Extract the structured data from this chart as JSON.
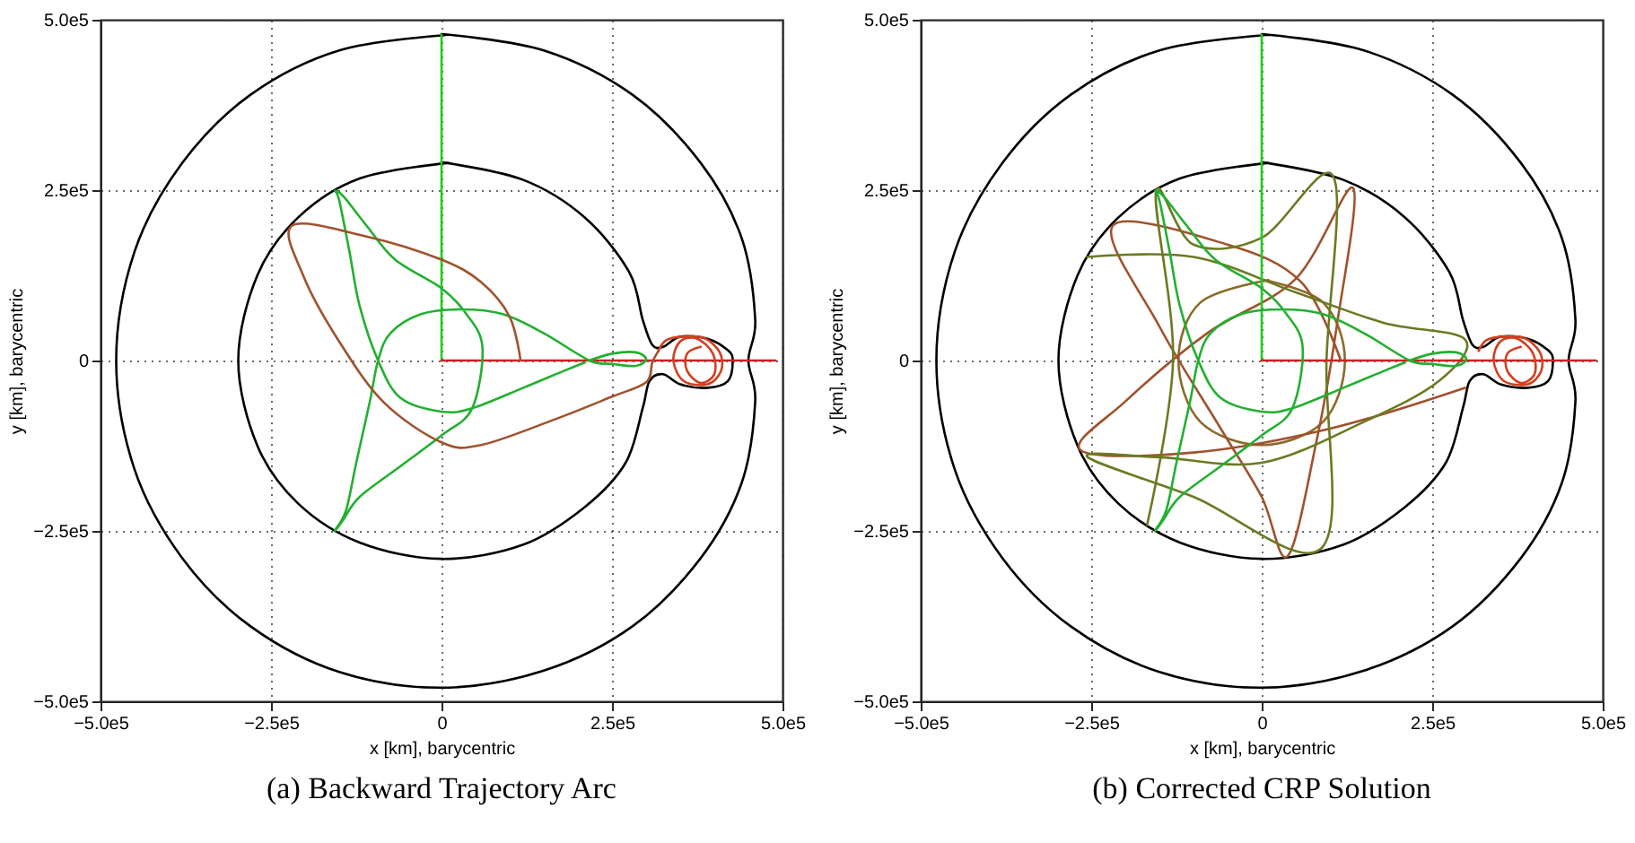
{
  "chart_data": [
    {
      "type": "line",
      "title": "(a) Backward Trajectory Arc",
      "xlabel": "x [km], barycentric",
      "ylabel": "y [km], barycentric",
      "xlim": [
        -500000.0,
        500000.0
      ],
      "ylim": [
        -500000.0,
        500000.0
      ],
      "xticks": [
        {
          "value": -500000.0,
          "label": "−5.0e5"
        },
        {
          "value": -250000.0,
          "label": "−2.5e5"
        },
        0,
        {
          "value": 250000.0,
          "label": "2.5e5"
        },
        {
          "value": 500000.0,
          "label": "5.0e5"
        }
      ],
      "yticks": [
        {
          "value": -500000.0,
          "label": "−5.0e5"
        },
        {
          "value": -250000.0,
          "label": "−2.5e5"
        },
        0,
        {
          "value": 250000.0,
          "label": "2.5e5"
        },
        {
          "value": 500000.0,
          "label": "5.0e5"
        }
      ],
      "grid": true,
      "series": [
        {
          "color": "#000000",
          "x": [
            0,
            150000.0,
            280000.0,
            380000.0,
            440000.0,
            460000.0,
            450000.0,
            460000.0,
            440000.0,
            380000.0,
            280000.0,
            150000.0,
            0,
            -150000.0,
            -280000.0,
            -380000.0,
            -450000.0,
            -477000.0,
            -450000.0,
            -380000.0,
            -280000.0,
            -150000.0,
            10000.0
          ],
          "values": [
            479000.0,
            455000.0,
            390000.0,
            290000.0,
            180000.0,
            60000.0,
            0,
            -60000.0,
            -180000.0,
            -290000.0,
            -390000.0,
            -455000.0,
            -480000.0,
            -457000.0,
            -390000.0,
            -290000.0,
            -160000.0,
            0,
            160000.0,
            290000.0,
            390000.0,
            455000.0,
            478000.0
          ]
        },
        {
          "color": "#000000",
          "x": [
            0,
            120000.0,
            210000.0,
            275000.0,
            295000.0,
            309000.0,
            325000.0,
            350000.0,
            390000.0,
            420000.0,
            427000.0,
            420000.0,
            390000.0,
            350000.0,
            325000.0,
            305000.0,
            295000.0,
            270000.0,
            210000.0,
            120000.0,
            0,
            -120000.0,
            -210000.0,
            -270000.0,
            -298000.0,
            -270000.0,
            -210000.0,
            -120000.0,
            10000.0
          ],
          "values": [
            291000.0,
            265000.0,
            210000.0,
            130000.0,
            60000.0,
            23000.0,
            20000.0,
            35000.0,
            32000.0,
            15000.0,
            0,
            -30000.0,
            -40000.0,
            -35000.0,
            -20000.0,
            -30000.0,
            -70000.0,
            -150000.0,
            -215000.0,
            -270000.0,
            -291000.0,
            -267000.0,
            -210000.0,
            -125000.0,
            0,
            125000.0,
            210000.0,
            267000.0,
            290000.0
          ]
        },
        {
          "color": "#22cc22",
          "x": [
            0,
            0
          ],
          "values": [
            0,
            478000.0
          ]
        },
        {
          "color": "#cc2222",
          "x": [
            0,
            490000.0
          ],
          "values": [
            0,
            0
          ]
        },
        {
          "color": "#22b030",
          "x": [
            217000.0,
            250000.0,
            285000.0,
            300000.0,
            285000.0,
            250000.0,
            217000.0,
            150000.0,
            90000.0,
            30000.0,
            -30000.0,
            -75000.0,
            -93000.0,
            -105000.0,
            -125000.0,
            -140000.0,
            -156000.0,
            -145000.0,
            -120000.0,
            -60000.0,
            0,
            45000.0,
            60000.0,
            35000.0,
            0,
            -68000.0,
            -110000.0,
            -143000.0,
            -156000.0,
            -150000.0,
            -135000.0,
            -120000.0,
            -93000.0,
            -60000.0,
            0,
            45000.0,
            120000.0,
            180000.0,
            210000.0
          ],
          "values": [
            0,
            10000.0,
            12000.0,
            2000.0,
            -8000.0,
            -5000.0,
            0,
            40000.0,
            68000.0,
            75000.0,
            68000.0,
            40000.0,
            0,
            -60000.0,
            -150000.0,
            -220000.0,
            -249000.0,
            -235000.0,
            -200000.0,
            -155000.0,
            -110000.0,
            -70000.0,
            20000.0,
            70000.0,
            106000.0,
            148000.0,
            198000.0,
            240000.0,
            249000.0,
            235000.0,
            160000.0,
            80000.0,
            0,
            -55000.0,
            -75000.0,
            -70000.0,
            -40000.0,
            -15000.0,
            -3000.0
          ]
        },
        {
          "color": "#a0522d",
          "x": [
            116000.0,
            100000.0,
            58000.0,
            0,
            -110000.0,
            -219000.0,
            -202000.0,
            -152000.0,
            -85000.0,
            0,
            58000.0,
            167000.0,
            250000.0,
            300000.0,
            309000.0,
            318000.0
          ],
          "values": [
            0,
            64000.0,
            115000.0,
            148000.0,
            182000.0,
            198000.0,
            123000.0,
            31000.0,
            -61000.0,
            -120000.0,
            -124000.0,
            -86000.0,
            -53000.0,
            -32000.0,
            -3000.0,
            14000.0
          ]
        },
        {
          "color": "#d04020",
          "x": [
            318000.0,
            330000.0,
            355000.0,
            385000.0,
            408000.0,
            410000.0,
            390000.0,
            355000.0,
            340000.0,
            350000.0,
            375000.0,
            398000.0,
            400000.0,
            380000.0,
            360000.0,
            360000.0,
            380000.0
          ],
          "values": [
            14000.0,
            30000.0,
            35000.0,
            33000.0,
            12000.0,
            -15000.0,
            -35000.0,
            -30000.0,
            0,
            28000.0,
            32000.0,
            10000.0,
            -20000.0,
            -33000.0,
            -15000.0,
            10000.0,
            20000.0
          ]
        }
      ]
    },
    {
      "type": "line",
      "title": "(b) Corrected CRP Solution",
      "xlabel": "x [km], barycentric",
      "ylabel": "y [km], barycentric",
      "xlim": [
        -500000.0,
        500000.0
      ],
      "ylim": [
        -500000.0,
        500000.0
      ],
      "xticks": [
        {
          "value": -500000.0,
          "label": "−5.0e5"
        },
        {
          "value": -250000.0,
          "label": "−2.5e5"
        },
        0,
        {
          "value": 250000.0,
          "label": "2.5e5"
        },
        {
          "value": 500000.0,
          "label": "5.0e5"
        }
      ],
      "yticks": [
        {
          "value": -500000.0,
          "label": "−5.0e5"
        },
        {
          "value": -250000.0,
          "label": "−2.5e5"
        },
        0,
        {
          "value": 250000.0,
          "label": "2.5e5"
        },
        {
          "value": 500000.0,
          "label": "5.0e5"
        }
      ],
      "grid": true,
      "series": [
        {
          "color": "#000000",
          "x": [
            0,
            150000.0,
            280000.0,
            380000.0,
            440000.0,
            460000.0,
            450000.0,
            460000.0,
            440000.0,
            380000.0,
            280000.0,
            150000.0,
            0,
            -150000.0,
            -280000.0,
            -380000.0,
            -450000.0,
            -477000.0,
            -450000.0,
            -380000.0,
            -280000.0,
            -150000.0,
            10000.0
          ],
          "values": [
            479000.0,
            455000.0,
            390000.0,
            290000.0,
            180000.0,
            60000.0,
            0,
            -60000.0,
            -180000.0,
            -290000.0,
            -390000.0,
            -455000.0,
            -480000.0,
            -457000.0,
            -390000.0,
            -290000.0,
            -160000.0,
            0,
            160000.0,
            290000.0,
            390000.0,
            455000.0,
            478000.0
          ]
        },
        {
          "color": "#000000",
          "x": [
            0,
            120000.0,
            210000.0,
            275000.0,
            295000.0,
            309000.0,
            325000.0,
            350000.0,
            390000.0,
            420000.0,
            427000.0,
            420000.0,
            390000.0,
            350000.0,
            325000.0,
            305000.0,
            295000.0,
            270000.0,
            210000.0,
            120000.0,
            0,
            -120000.0,
            -210000.0,
            -270000.0,
            -298000.0,
            -270000.0,
            -210000.0,
            -120000.0,
            10000.0
          ],
          "values": [
            291000.0,
            265000.0,
            210000.0,
            130000.0,
            60000.0,
            23000.0,
            20000.0,
            35000.0,
            32000.0,
            15000.0,
            0,
            -30000.0,
            -40000.0,
            -35000.0,
            -20000.0,
            -30000.0,
            -70000.0,
            -150000.0,
            -215000.0,
            -270000.0,
            -291000.0,
            -267000.0,
            -210000.0,
            -125000.0,
            0,
            125000.0,
            210000.0,
            267000.0,
            290000.0
          ]
        },
        {
          "color": "#8b6a2a",
          "x": [
            0,
            90000.0,
            122000.0,
            90000.0,
            0,
            -90000.0,
            -122000.0,
            -90000.0,
            10000.0
          ],
          "values": [
            119000.0,
            85000.0,
            0,
            -90000.0,
            -124000.0,
            -90000.0,
            0,
            85000.0,
            118000.0
          ]
        },
        {
          "color": "#a0522d",
          "x": [
            116000.0,
            58000.0,
            -50000.0,
            -218000.0,
            -150000.0,
            -60000.0,
            0,
            38000.0,
            80000.0,
            110000.0,
            134000.0,
            50000.0,
            -80000.0,
            -200000.0,
            -265000.0,
            -100000.0,
            100000.0,
            298000.0
          ],
          "values": [
            0,
            115000.0,
            170000.0,
            198000.0,
            50000.0,
            -100000.0,
            -200000.0,
            -287000.0,
            -120000.0,
            50000.0,
            253000.0,
            120000.0,
            40000.0,
            -60000.0,
            -132000.0,
            -135000.0,
            -100000.0,
            -40000.0
          ]
        },
        {
          "color": "#6b7a22",
          "x": [
            -256000.0,
            -100000.0,
            50000.0,
            180000.0,
            298000.0,
            260000.0,
            150000.0,
            0,
            -150000.0,
            -256000.0,
            -100000.0,
            88000.0,
            95000.0,
            105000.0,
            0,
            -100000.0,
            -155000.0,
            -130000.0,
            -168000.0
          ],
          "values": [
            152000.0,
            152000.0,
            100000.0,
            55000.0,
            31000.0,
            -30000.0,
            -90000.0,
            -150000.0,
            -142000.0,
            -141000.0,
            -200000.0,
            -275000.0,
            0,
            270000.0,
            180000.0,
            170000.0,
            248000.0,
            0,
            -241000.0
          ]
        },
        {
          "color": "#22cc22",
          "x": [
            0,
            0
          ],
          "values": [
            0,
            478000.0
          ]
        },
        {
          "color": "#cc2222",
          "x": [
            0,
            490000.0
          ],
          "values": [
            0,
            0
          ]
        },
        {
          "color": "#22b030",
          "x": [
            217000.0,
            250000.0,
            285000.0,
            300000.0,
            285000.0,
            250000.0,
            217000.0,
            150000.0,
            90000.0,
            30000.0,
            -30000.0,
            -75000.0,
            -93000.0,
            -105000.0,
            -125000.0,
            -140000.0,
            -156000.0,
            -145000.0,
            -120000.0,
            -60000.0,
            0,
            45000.0,
            60000.0,
            35000.0,
            0,
            -68000.0,
            -110000.0,
            -143000.0,
            -156000.0,
            -150000.0,
            -135000.0,
            -120000.0,
            -93000.0,
            -60000.0,
            0,
            45000.0,
            120000.0,
            180000.0,
            210000.0
          ],
          "values": [
            0,
            10000.0,
            12000.0,
            2000.0,
            -8000.0,
            -5000.0,
            0,
            40000.0,
            68000.0,
            75000.0,
            68000.0,
            40000.0,
            0,
            -60000.0,
            -150000.0,
            -220000.0,
            -249000.0,
            -235000.0,
            -200000.0,
            -155000.0,
            -110000.0,
            -70000.0,
            20000.0,
            70000.0,
            106000.0,
            148000.0,
            198000.0,
            240000.0,
            249000.0,
            235000.0,
            160000.0,
            80000.0,
            0,
            -55000.0,
            -75000.0,
            -70000.0,
            -40000.0,
            -15000.0,
            -3000.0
          ]
        },
        {
          "color": "#d04020",
          "x": [
            318000.0,
            330000.0,
            355000.0,
            385000.0,
            408000.0,
            410000.0,
            390000.0,
            355000.0,
            340000.0,
            350000.0,
            375000.0,
            398000.0,
            400000.0,
            380000.0,
            360000.0,
            360000.0,
            380000.0
          ],
          "values": [
            14000.0,
            30000.0,
            35000.0,
            33000.0,
            12000.0,
            -15000.0,
            -35000.0,
            -30000.0,
            0,
            28000.0,
            32000.0,
            10000.0,
            -20000.0,
            -33000.0,
            -15000.0,
            10000.0,
            20000.0
          ]
        }
      ]
    }
  ]
}
